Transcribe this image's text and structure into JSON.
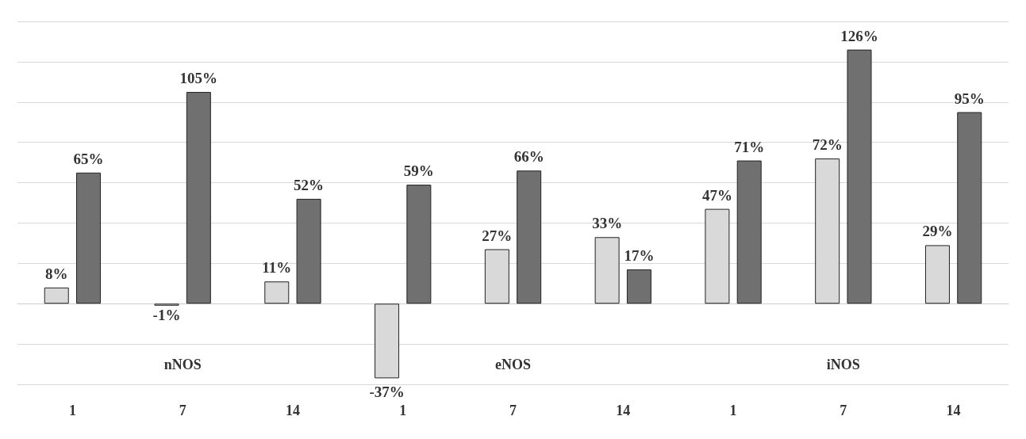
{
  "chart_data": {
    "type": "bar",
    "categories": [
      "1",
      "7",
      "14",
      "1",
      "7",
      "14",
      "1",
      "7",
      "14"
    ],
    "annotations": [
      "nNOS",
      "eNOS",
      "iNOS"
    ],
    "series": [
      {
        "color": "#d9d9d9",
        "values": [
          8,
          -1,
          11,
          -37,
          27,
          33,
          47,
          72,
          29
        ],
        "value_labels": [
          "8%",
          "-1%",
          "11%",
          "-37%",
          "27%",
          "33%",
          "47%",
          "72%",
          "29%"
        ]
      },
      {
        "color": "#707070",
        "values": [
          65,
          105,
          52,
          59,
          66,
          17,
          71,
          126,
          95
        ],
        "value_labels": [
          "65%",
          "105%",
          "52%",
          "59%",
          "66%",
          "17%",
          "71%",
          "126%",
          "95%"
        ]
      }
    ],
    "ylim": [
      -40,
      140
    ],
    "yticks": [
      {
        "value": -40,
        "label": null
      },
      {
        "value": -20,
        "label": null
      },
      {
        "value": 0,
        "label": null
      },
      {
        "value": 20,
        "label": null
      },
      {
        "value": 40,
        "label": null
      },
      {
        "value": 60,
        "label": null
      },
      {
        "value": 80,
        "label": null
      },
      {
        "value": 100,
        "label": null
      },
      {
        "value": 120,
        "label": null
      },
      {
        "value": 140,
        "label": null
      }
    ],
    "grid": "y"
  }
}
